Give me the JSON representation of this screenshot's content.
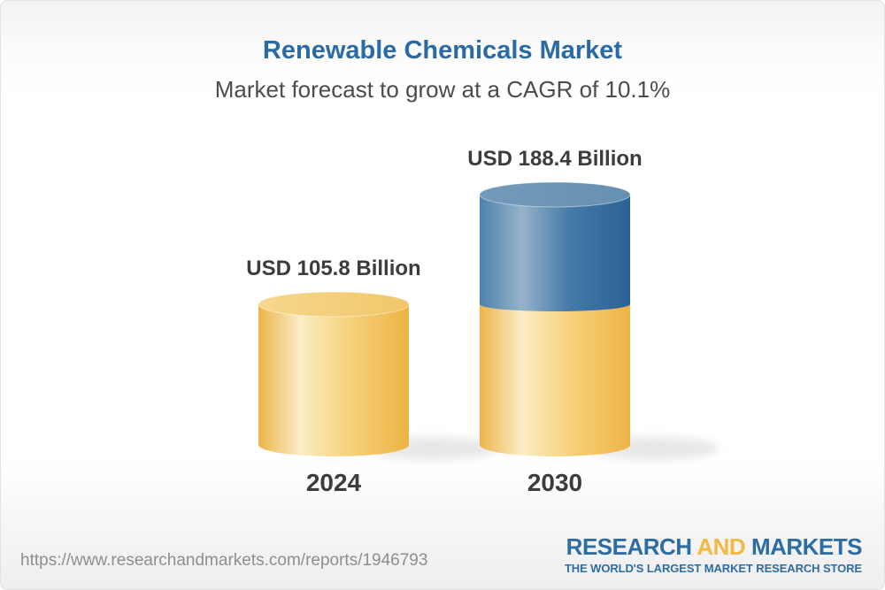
{
  "header": {
    "title": "Renewable Chemicals Market",
    "subtitle": "Market forecast to grow at a CAGR of 10.1%"
  },
  "chart_data": {
    "type": "bar",
    "style": "3d-cylinder",
    "title": "Renewable Chemicals Market",
    "subtitle": "Market forecast to grow at a CAGR of 10.1%",
    "categories": [
      "2024",
      "2030"
    ],
    "values": [
      105.8,
      188.4
    ],
    "value_labels": [
      "USD 105.8 Billion",
      "USD 188.4 Billion"
    ],
    "unit": "USD Billion",
    "cagr_percent": 10.1,
    "grid": false,
    "legend_position": "none",
    "bar_segments": [
      {
        "category": "2024",
        "segments": [
          {
            "color": "yellow",
            "to_value": 105.8
          }
        ]
      },
      {
        "category": "2030",
        "segments": [
          {
            "color": "yellow",
            "to_value": 105.8
          },
          {
            "color": "blue",
            "to_value": 188.4
          }
        ]
      }
    ],
    "colors": {
      "cylinder_yellow": "#f2c869",
      "cylinder_blue": "#45799f",
      "label_text": "#3c3c3c",
      "title_blue": "#2a6ba6"
    }
  },
  "footer": {
    "url": "https://www.researchandmarkets.com/reports/1946793",
    "logo": {
      "word1": "RESEARCH",
      "word2": "AND",
      "word3": "MARKETS",
      "tagline": "THE WORLD'S LARGEST MARKET RESEARCH STORE",
      "blue": "#2e6ca4",
      "gold": "#f3b941"
    }
  }
}
